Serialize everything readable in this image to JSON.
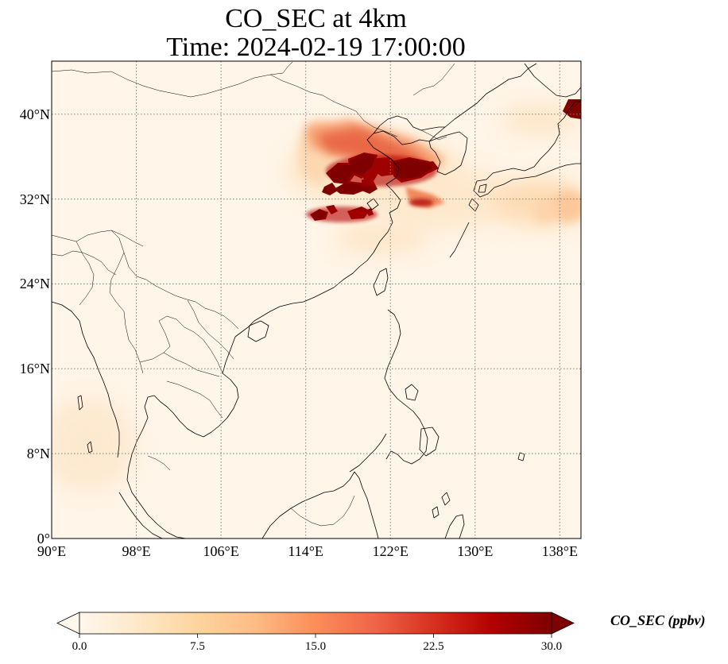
{
  "title": {
    "line1": "CO_SEC at 4km",
    "line2": "Time: 2024-02-19 17:00:00"
  },
  "map": {
    "extent": {
      "lon": [
        90,
        140
      ],
      "lat": [
        0,
        45
      ]
    },
    "x_ticks": [
      {
        "lon": 90,
        "label": "90°E"
      },
      {
        "lon": 98,
        "label": "98°E"
      },
      {
        "lon": 106,
        "label": "106°E"
      },
      {
        "lon": 114,
        "label": "114°E"
      },
      {
        "lon": 122,
        "label": "122°E"
      },
      {
        "lon": 130,
        "label": "130°E"
      },
      {
        "lon": 138,
        "label": "138°E"
      }
    ],
    "y_ticks": [
      {
        "lat": 0,
        "label": "0°"
      },
      {
        "lat": 8,
        "label": "8°N"
      },
      {
        "lat": 16,
        "label": "16°N"
      },
      {
        "lat": 24,
        "label": "24°N"
      },
      {
        "lat": 32,
        "label": "32°N"
      },
      {
        "lat": 40,
        "label": "40°N"
      }
    ],
    "gridlines": "dotted",
    "colormap": "OrRd",
    "plumes": [
      {
        "region": "North China Plain / Yellow Sea",
        "lon": 120,
        "lat": 35,
        "level": "above 30"
      },
      {
        "region": "Central-east China",
        "lon": 116,
        "lat": 30.5,
        "level": "above 30"
      },
      {
        "region": "Northern China band",
        "lon": 118,
        "lat": 37.5,
        "level": "about 20"
      },
      {
        "region": "Japan (Honshu north)",
        "lon": 139.5,
        "lat": 40.5,
        "level": "above 30"
      }
    ]
  },
  "colorbar": {
    "label": "CO_SEC (ppbv)",
    "min": 0.0,
    "max": 30.0,
    "ticks": [
      "0.0",
      "7.5",
      "15.0",
      "22.5",
      "30.0"
    ],
    "extend": "both",
    "colors": [
      "#fff7ec",
      "#fee8c8",
      "#fdd49e",
      "#fdbb84",
      "#fc8d59",
      "#ef6548",
      "#d7301f",
      "#b30000",
      "#7f0000"
    ]
  }
}
